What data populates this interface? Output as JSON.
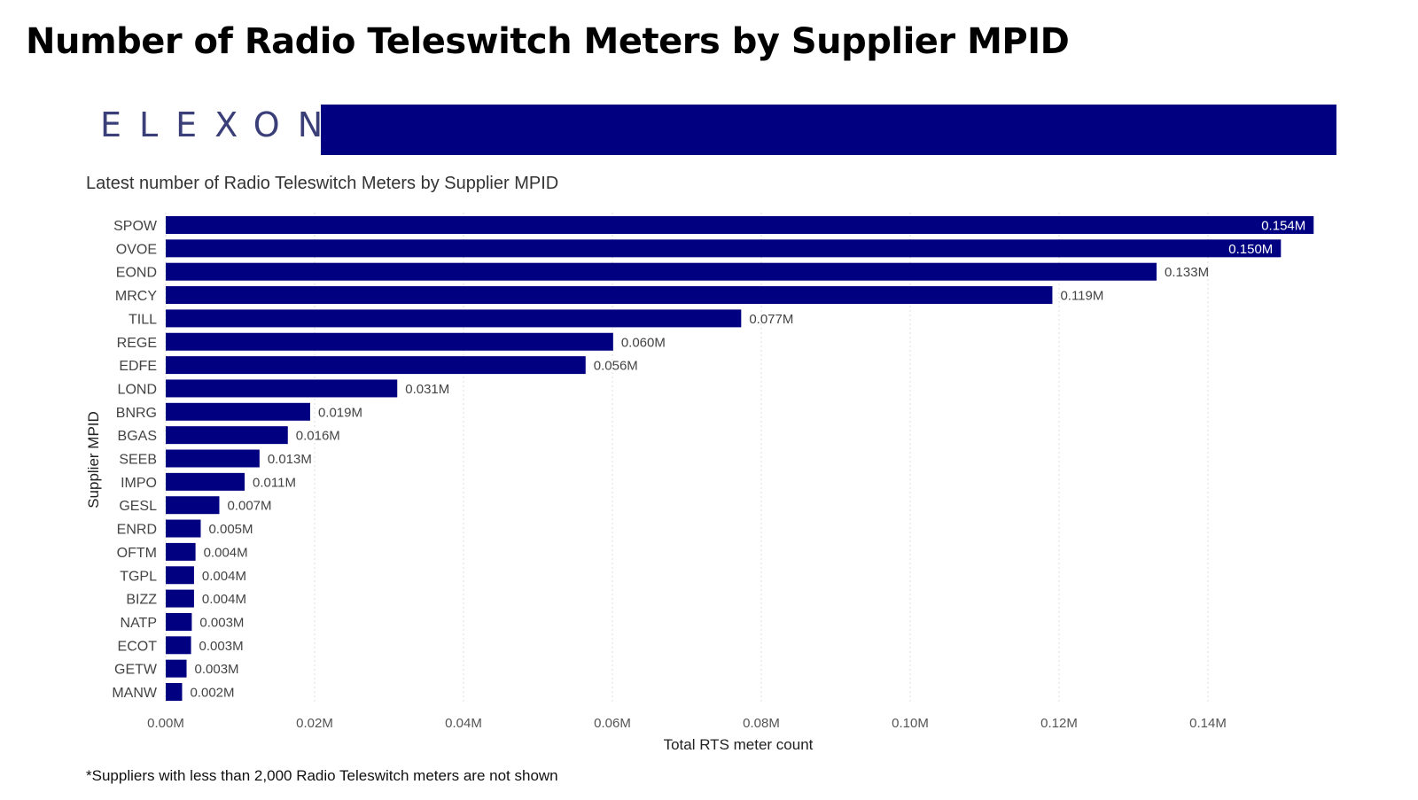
{
  "page": {
    "title": "Number of Radio Teleswitch Meters by Supplier MPID",
    "logo_text": "ELEXON",
    "footnote": "*Suppliers with less than 2,000 Radio Teleswitch meters are not shown"
  },
  "colors": {
    "bar": "#000080",
    "brand_bar": "#000080",
    "logo": "#3b3f78",
    "gridline": "#dddddd",
    "value_label_inside": "#ffffff",
    "value_label_outside": "#444444"
  },
  "chart_data": {
    "type": "bar",
    "orientation": "horizontal",
    "title": "Latest number of Radio Teleswitch Meters by Supplier MPID",
    "xlabel": "Total RTS meter count",
    "ylabel": "Supplier MPID",
    "categories": [
      "SPOW",
      "OVOE",
      "EOND",
      "MRCY",
      "TILL",
      "REGE",
      "EDFE",
      "LOND",
      "BNRG",
      "BGAS",
      "SEEB",
      "IMPO",
      "GESL",
      "ENRD",
      "OFTM",
      "TGPL",
      "BIZZ",
      "NATP",
      "ECOT",
      "GETW",
      "MANW"
    ],
    "values": [
      0.154,
      0.15,
      0.133,
      0.119,
      0.077,
      0.06,
      0.056,
      0.031,
      0.019,
      0.016,
      0.013,
      0.011,
      0.007,
      0.005,
      0.004,
      0.004,
      0.004,
      0.003,
      0.003,
      0.003,
      0.002
    ],
    "value_labels": [
      "0.154M",
      "0.150M",
      "0.133M",
      "0.119M",
      "0.077M",
      "0.060M",
      "0.056M",
      "0.031M",
      "0.019M",
      "0.016M",
      "0.013M",
      "0.011M",
      "0.007M",
      "0.005M",
      "0.004M",
      "0.004M",
      "0.004M",
      "0.003M",
      "0.003M",
      "0.003M",
      "0.002M"
    ],
    "bar_values_precise": [
      0.1542,
      0.1498,
      0.1331,
      0.1191,
      0.0773,
      0.0601,
      0.0564,
      0.0311,
      0.0194,
      0.0164,
      0.0126,
      0.0106,
      0.0072,
      0.0047,
      0.004,
      0.0038,
      0.0038,
      0.0035,
      0.0034,
      0.0028,
      0.0022
    ],
    "xticks": [
      0,
      0.02,
      0.04,
      0.06,
      0.08,
      0.1,
      0.12,
      0.14
    ],
    "xtick_labels": [
      "0.00M",
      "0.02M",
      "0.04M",
      "0.06M",
      "0.08M",
      "0.10M",
      "0.12M",
      "0.14M"
    ],
    "xlim": [
      0,
      0.158
    ],
    "grid": "vertical dotted",
    "legend": "none"
  }
}
